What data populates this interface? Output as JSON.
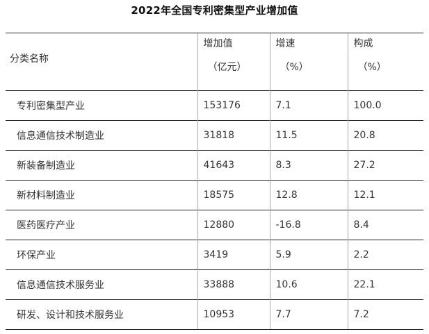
{
  "title": "2022年全国专利密集型产业增加值",
  "header": {
    "category": "分类名称",
    "value_label": "增加值",
    "value_unit": "（亿元）",
    "growth_label": "增速",
    "growth_unit": "（%）",
    "share_label": "构成",
    "share_unit": "（%）"
  },
  "rows": [
    {
      "name": "专利密集型产业",
      "value": "153176",
      "growth": "7.1",
      "share": "100.0"
    },
    {
      "name": "信息通信技术制造业",
      "value": "31818",
      "growth": "11.5",
      "share": "20.8"
    },
    {
      "name": "新装备制造业",
      "value": "41643",
      "growth": "8.3",
      "share": "27.2"
    },
    {
      "name": "新材料制造业",
      "value": "18575",
      "growth": "12.8",
      "share": "12.1"
    },
    {
      "name": "医药医疗产业",
      "value": "12880",
      "growth": "-16.8",
      "share": "8.4"
    },
    {
      "name": "环保产业",
      "value": "3419",
      "growth": "5.9",
      "share": "2.2"
    },
    {
      "name": "信息通信技术服务业",
      "value": "33888",
      "growth": "10.6",
      "share": "22.1"
    },
    {
      "name": "研发、设计和技术服务业",
      "value": "10953",
      "growth": "7.7",
      "share": "7.2"
    }
  ]
}
